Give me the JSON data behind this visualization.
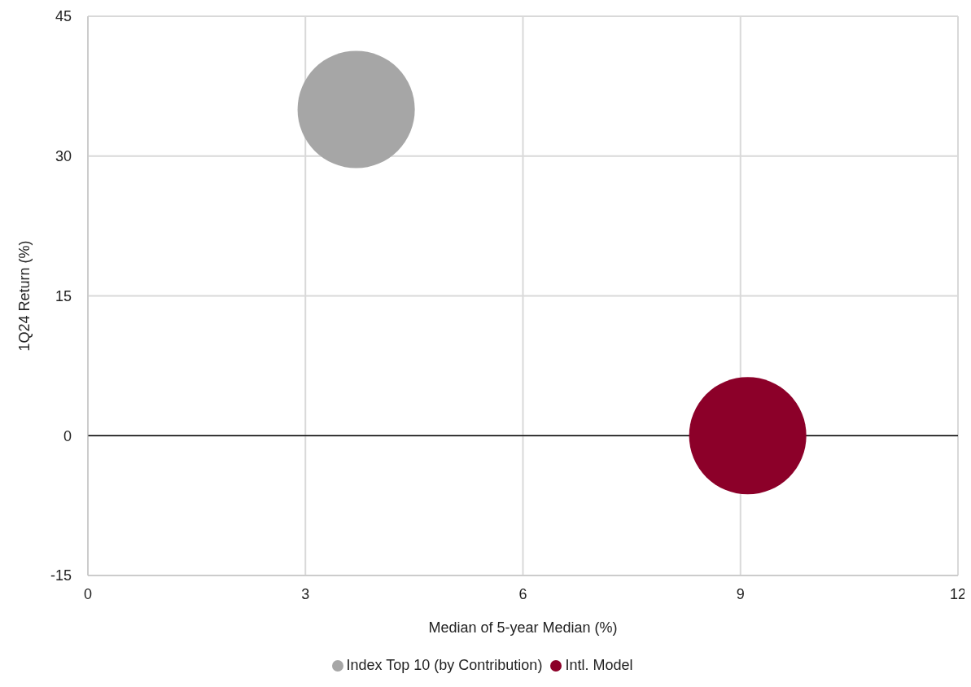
{
  "chart_data": {
    "type": "bubble",
    "xlabel": "Median of 5-year Median (%)",
    "ylabel": "1Q24 Return (%)",
    "xlim": [
      0,
      12
    ],
    "xticks": [
      0,
      3,
      6,
      9,
      12
    ],
    "ylim": [
      -15,
      45
    ],
    "yticks": [
      -15,
      0,
      15,
      30,
      45
    ],
    "grid": true,
    "legend": "bottom",
    "ref_lines": [
      {
        "axis": "y",
        "value": 0,
        "color": "#000000"
      }
    ],
    "series": [
      {
        "name": "Intl. Model",
        "color": "#8c0029",
        "x": [
          9.1
        ],
        "values": [
          0
        ],
        "sizes": [
          1
        ]
      },
      {
        "name": "Index Top 10 (by Contribution)",
        "color": "#a6a6a6",
        "x": [
          3.7
        ],
        "values": [
          35
        ],
        "sizes": [
          1
        ]
      }
    ]
  }
}
